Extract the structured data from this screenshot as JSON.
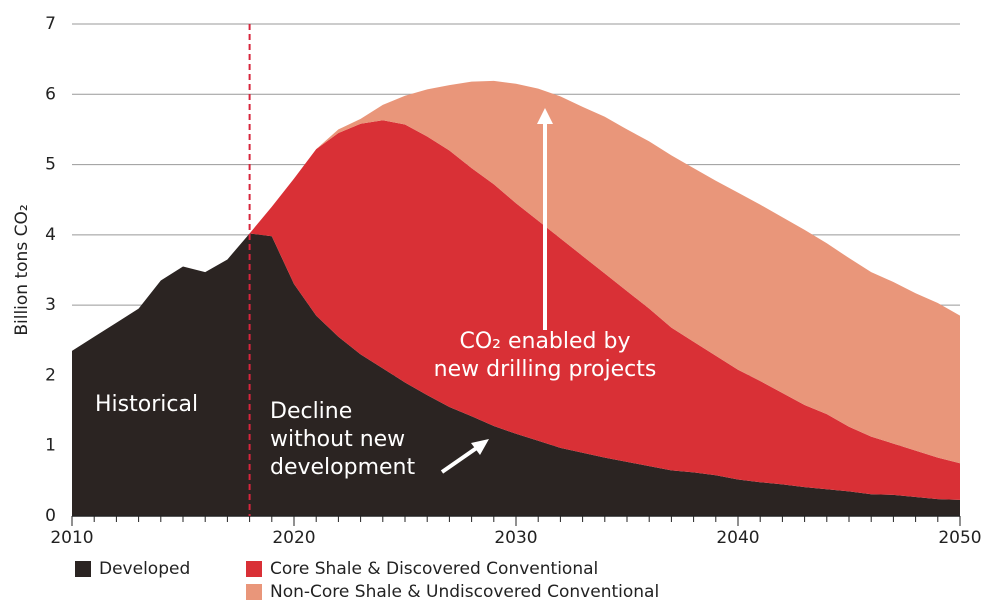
{
  "chart_data": {
    "type": "stacked_area",
    "y_label": "Billion tons CO₂",
    "x": [
      2010,
      2011,
      2012,
      2013,
      2014,
      2015,
      2016,
      2017,
      2018,
      2019,
      2020,
      2021,
      2022,
      2023,
      2024,
      2025,
      2026,
      2027,
      2028,
      2029,
      2030,
      2031,
      2032,
      2033,
      2034,
      2035,
      2036,
      2037,
      2038,
      2039,
      2040,
      2041,
      2042,
      2043,
      2044,
      2045,
      2046,
      2047,
      2048,
      2049,
      2050
    ],
    "series": [
      {
        "name": "Developed",
        "color": "#2b2422",
        "values": [
          2.35,
          2.55,
          2.75,
          2.95,
          3.35,
          3.55,
          3.47,
          3.65,
          4.02,
          3.98,
          3.3,
          2.85,
          2.55,
          2.3,
          2.1,
          1.9,
          1.72,
          1.55,
          1.42,
          1.28,
          1.17,
          1.07,
          0.97,
          0.9,
          0.83,
          0.77,
          0.71,
          0.65,
          0.62,
          0.58,
          0.52,
          0.48,
          0.45,
          0.41,
          0.38,
          0.35,
          0.31,
          0.3,
          0.27,
          0.24,
          0.23
        ]
      },
      {
        "name": "Core Shale & Discovered Conventional",
        "color": "#d93036",
        "values": [
          0,
          0,
          0,
          0,
          0,
          0,
          0,
          0,
          0,
          0.42,
          1.5,
          2.37,
          2.9,
          3.28,
          3.53,
          3.67,
          3.68,
          3.65,
          3.53,
          3.44,
          3.28,
          3.13,
          2.98,
          2.8,
          2.62,
          2.43,
          2.24,
          2.03,
          1.86,
          1.7,
          1.56,
          1.44,
          1.3,
          1.17,
          1.07,
          0.92,
          0.82,
          0.73,
          0.66,
          0.59,
          0.52
        ]
      },
      {
        "name": "Non-Core Shale & Undiscovered Conventional",
        "color": "#e9967a",
        "values": [
          0,
          0,
          0,
          0,
          0,
          0,
          0,
          0,
          0,
          0,
          0,
          0,
          0.05,
          0.07,
          0.22,
          0.41,
          0.67,
          0.93,
          1.23,
          1.47,
          1.7,
          1.88,
          2.02,
          2.12,
          2.23,
          2.3,
          2.38,
          2.45,
          2.47,
          2.49,
          2.52,
          2.51,
          2.5,
          2.49,
          2.43,
          2.4,
          2.34,
          2.3,
          2.24,
          2.2,
          2.1
        ]
      }
    ],
    "xlim": [
      2010,
      2050
    ],
    "xticks": [
      2010,
      2020,
      2030,
      2040,
      2050
    ],
    "ylim": [
      0,
      7
    ],
    "yticks": [
      0,
      1,
      2,
      3,
      4,
      5,
      6,
      7
    ],
    "grid": true,
    "reference_line": {
      "x": 2018,
      "color": "#d7263d"
    },
    "annotations": [
      {
        "lines": [
          "Historical"
        ]
      },
      {
        "lines": [
          "Decline",
          "without new",
          "development"
        ]
      },
      {
        "lines": [
          "CO₂ enabled by",
          "new drilling projects"
        ]
      }
    ]
  }
}
